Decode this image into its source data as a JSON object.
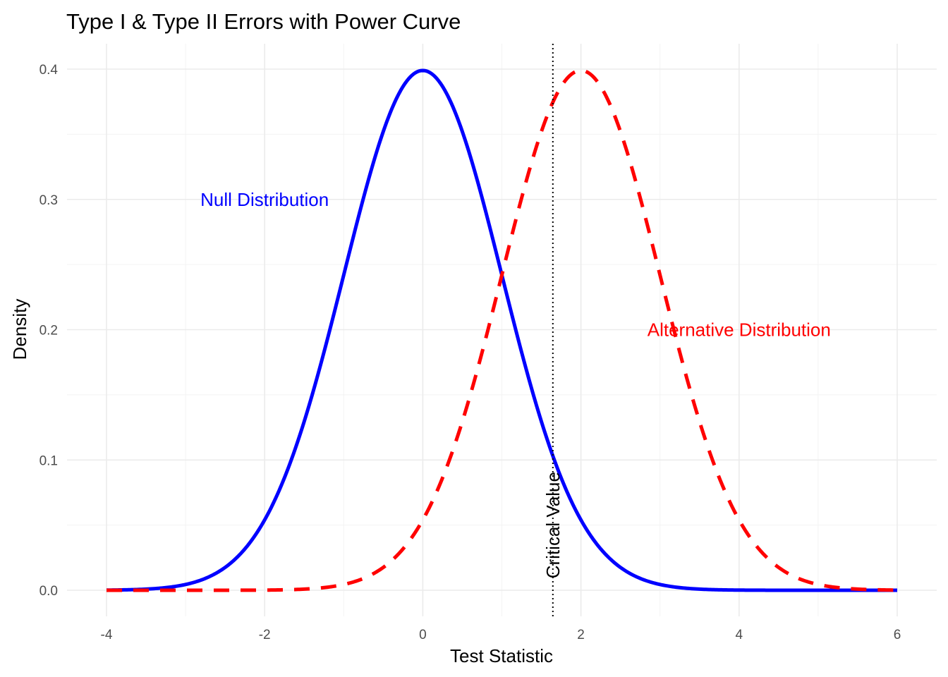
{
  "chart_data": {
    "type": "line",
    "title": "Type I & Type II Errors with Power Curve",
    "xlabel": "Test Statistic",
    "ylabel": "Density",
    "xlim": [
      -4,
      6
    ],
    "ylim": [
      0,
      0.4
    ],
    "x_ticks": [
      "-4",
      "-2",
      "0",
      "2",
      "4",
      "6"
    ],
    "x_tick_values": [
      -4,
      -2,
      0,
      2,
      4,
      6
    ],
    "y_ticks": [
      "0.0",
      "0.1",
      "0.2",
      "0.3",
      "0.4"
    ],
    "y_tick_values": [
      0,
      0.1,
      0.2,
      0.3,
      0.4
    ],
    "grid": true,
    "legend": "none",
    "series": [
      {
        "key": "null",
        "distribution": "normal",
        "mean": 0,
        "sd": 1,
        "x_range": [
          -4,
          6
        ],
        "color": "#0000ff",
        "line_style": "solid"
      },
      {
        "key": "alternative",
        "distribution": "normal",
        "mean": 2,
        "sd": 1,
        "x_range": [
          -4,
          6
        ],
        "color": "#ff0000",
        "line_style": "dashed"
      }
    ],
    "vlines": [
      {
        "x": 1.645,
        "color": "#000000",
        "line_style": "dotted"
      }
    ],
    "annotations": [
      {
        "text": "Null Distribution",
        "x": -2,
        "y": 0.3,
        "color": "#0000ff",
        "angle": 0
      },
      {
        "text": "Alternative Distribution",
        "x": 4,
        "y": 0.2,
        "color": "#ff0000",
        "angle": 0
      },
      {
        "text": "Critical Value",
        "x": 1.645,
        "y": 0.05,
        "color": "#000000",
        "angle": 90
      }
    ]
  }
}
